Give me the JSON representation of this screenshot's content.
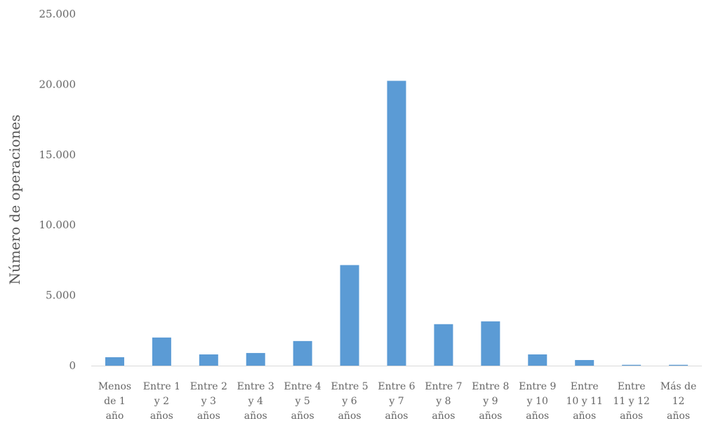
{
  "chart_data": {
    "type": "bar",
    "title": "",
    "xlabel": "",
    "ylabel": "Número de operaciones",
    "categories": [
      [
        "Menos",
        "de 1",
        "año"
      ],
      [
        "Entre 1",
        "y 2",
        "años"
      ],
      [
        "Entre 2",
        "y 3",
        "años"
      ],
      [
        "Entre 3",
        "y 4",
        "años"
      ],
      [
        "Entre 4",
        "y 5",
        "años"
      ],
      [
        "Entre 5",
        "y 6",
        "años"
      ],
      [
        "Entre 6",
        "y 7",
        "años"
      ],
      [
        "Entre 7",
        "y 8",
        "años"
      ],
      [
        "Entre 8",
        "y 9",
        "años"
      ],
      [
        "Entre 9",
        "y 10",
        "años"
      ],
      [
        "Entre",
        "10 y 11",
        "años"
      ],
      [
        "Entre",
        "11 y 12",
        "años"
      ],
      [
        "Más de",
        "12",
        "años"
      ]
    ],
    "values": [
      600,
      2000,
      800,
      900,
      1750,
      7150,
      20250,
      2950,
      3150,
      800,
      400,
      60,
      60
    ],
    "ylim": [
      0,
      25000
    ],
    "yticks": [
      0,
      5000,
      10000,
      15000,
      20000,
      25000
    ],
    "ytick_labels": [
      "0",
      "5.000",
      "10.000",
      "15.000",
      "20.000",
      "25.000"
    ],
    "grid": false,
    "legend": "none",
    "colors": {
      "bar": "#5b9bd5",
      "axis": "#d9d9d9"
    }
  }
}
